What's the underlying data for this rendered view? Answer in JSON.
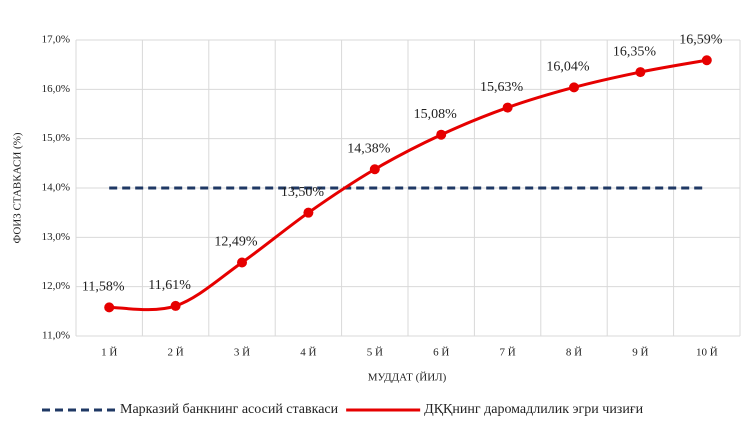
{
  "chart_data": {
    "type": "line",
    "x_label": "МУДДАТ (ЙИЛ)",
    "y_label": "ФОИЗ СТАВКАСИ (%)",
    "categories": [
      "1 Й",
      "2 Й",
      "3 Й",
      "4 Й",
      "5 Й",
      "6 Й",
      "7 Й",
      "8 Й",
      "9 Й",
      "10 Й"
    ],
    "series": [
      {
        "name": "Марказий банкнинг асосий ставкаси",
        "color": "#1f3864",
        "dashed": true,
        "smooth": false,
        "values": [
          14,
          14,
          14,
          14,
          14,
          14,
          14,
          14,
          14,
          14
        ]
      },
      {
        "name": "ДҚҚнинг даромадлилик эгри чизиғи",
        "color": "#e60000",
        "dashed": false,
        "smooth": true,
        "markers": true,
        "values": [
          11.58,
          11.61,
          12.49,
          13.5,
          14.38,
          15.08,
          15.63,
          16.04,
          16.35,
          16.59
        ],
        "value_labels": [
          "11,58%",
          "11,61%",
          "12,49%",
          "13,50%",
          "14,38%",
          "15,08%",
          "15,63%",
          "16,04%",
          "16,35%",
          "16,59%"
        ]
      }
    ],
    "ylim": [
      11,
      17
    ],
    "yticks": [
      {
        "value": 11,
        "label": "11,0%"
      },
      {
        "value": 12,
        "label": "12,0%"
      },
      {
        "value": 13,
        "label": "13,0%"
      },
      {
        "value": 14,
        "label": "14,0%"
      },
      {
        "value": 15,
        "label": "15,0%"
      },
      {
        "value": 16,
        "label": "16,0%"
      },
      {
        "value": 17,
        "label": "17,0%"
      }
    ],
    "grid": true,
    "legend": "bottom"
  }
}
